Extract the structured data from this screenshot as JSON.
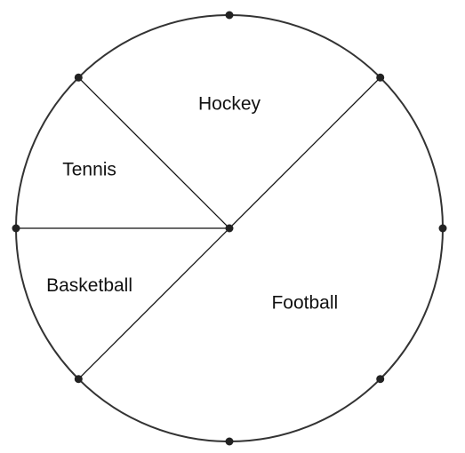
{
  "chart_data": {
    "type": "pie",
    "categories": [
      "Football",
      "Basketball",
      "Tennis",
      "Hockey"
    ],
    "values": [
      50,
      12.5,
      12.5,
      25
    ],
    "value_unit": "percent",
    "start_angle_deg": 45,
    "direction": "clockwise",
    "legend": "none",
    "style": {
      "fill": "none",
      "stroke_color": "#333333",
      "marker_color": "#222222"
    }
  }
}
